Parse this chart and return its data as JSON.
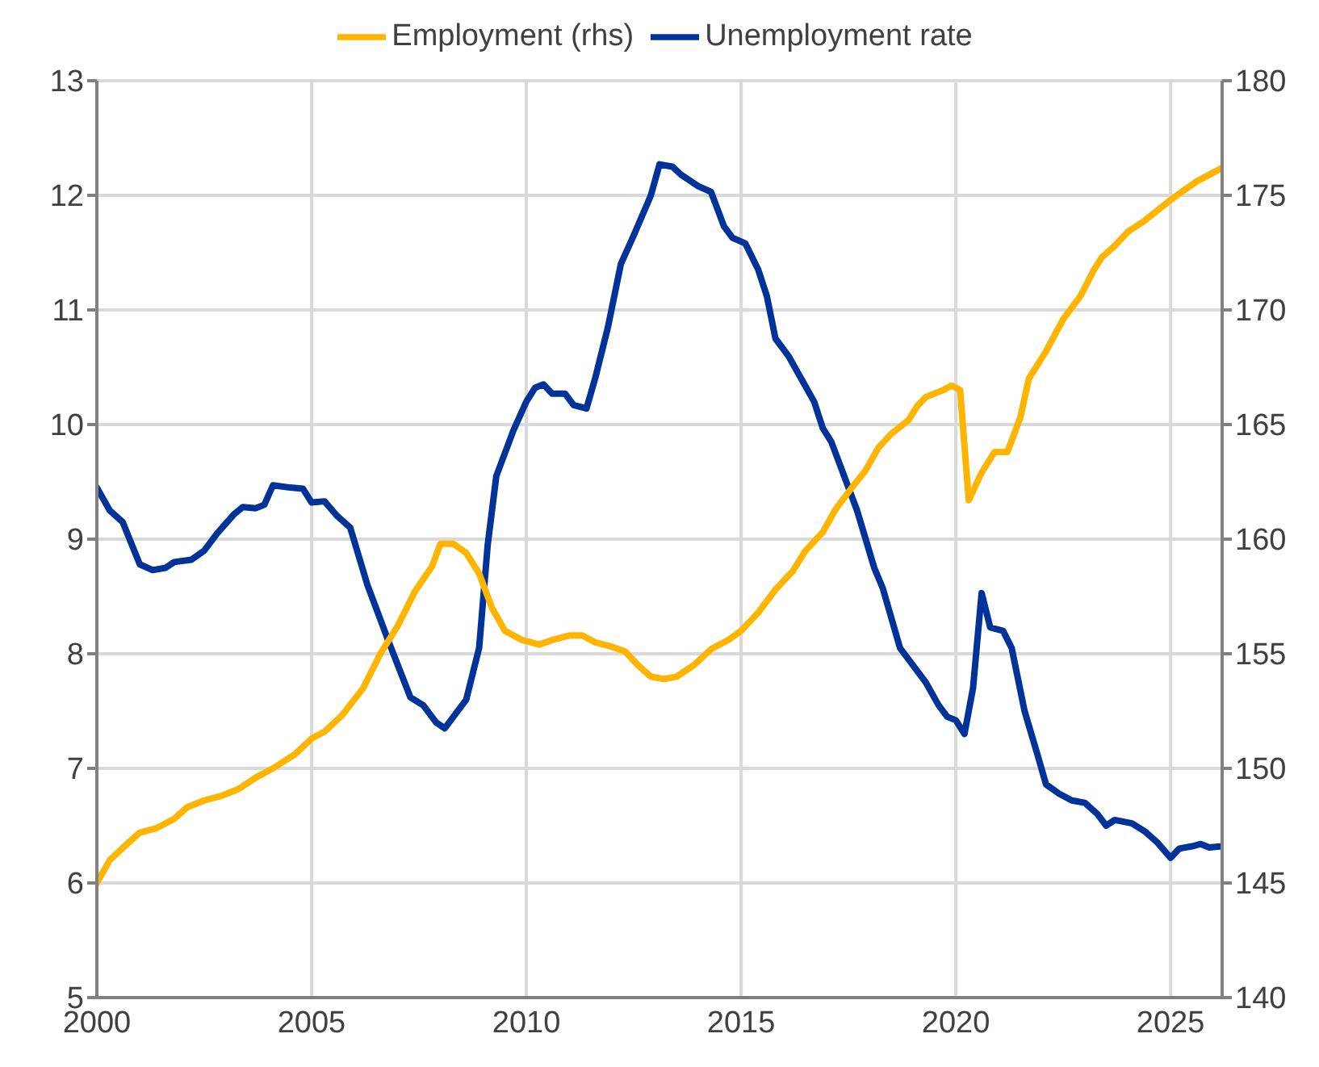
{
  "chart_data": {
    "type": "line",
    "xlim": [
      2000,
      2026.2
    ],
    "xticks": [
      2000,
      2005,
      2010,
      2015,
      2020,
      2025
    ],
    "ylim": [
      5,
      13
    ],
    "yticks": [
      5,
      6,
      7,
      8,
      9,
      10,
      11,
      12,
      13
    ],
    "y2lim": [
      140,
      180
    ],
    "y2ticks": [
      140,
      145,
      150,
      155,
      160,
      165,
      170,
      175,
      180
    ],
    "grid": true,
    "legend": "top",
    "marker": "none",
    "line_style": "solid",
    "series": [
      {
        "name": "Unemployment rate",
        "color": "#003399",
        "x": [
          2000.0,
          2000.3,
          2000.6,
          2001.0,
          2001.3,
          2001.6,
          2001.8,
          2002.2,
          2002.5,
          2002.8,
          2003.2,
          2003.4,
          2003.7,
          2003.9,
          2004.1,
          2004.5,
          2004.8,
          2005.0,
          2005.3,
          2005.6,
          2005.9,
          2006.3,
          2006.8,
          2007.3,
          2007.6,
          2007.9,
          2008.1,
          2008.6,
          2008.9,
          2009.1,
          2009.3,
          2009.7,
          2010.0,
          2010.2,
          2010.4,
          2010.6,
          2010.9,
          2011.1,
          2011.4,
          2011.6,
          2011.9,
          2012.2,
          2012.5,
          2012.9,
          2013.1,
          2013.4,
          2013.6,
          2014.0,
          2014.3,
          2014.6,
          2014.8,
          2015.1,
          2015.4,
          2015.6,
          2015.8,
          2016.1,
          2016.4,
          2016.7,
          2016.9,
          2017.1,
          2017.4,
          2017.7,
          2017.9,
          2018.1,
          2018.3,
          2018.7,
          2019.0,
          2019.3,
          2019.6,
          2019.8,
          2020.0,
          2020.2,
          2020.4,
          2020.6,
          2020.8,
          2021.1,
          2021.3,
          2021.6,
          2021.9,
          2022.1,
          2022.4,
          2022.7,
          2023.0,
          2023.3,
          2023.5,
          2023.7,
          2024.1,
          2024.4,
          2024.7,
          2025.0,
          2025.2,
          2025.5,
          2025.7,
          2025.9,
          2026.2
        ],
        "values": [
          9.45,
          9.25,
          9.15,
          8.78,
          8.73,
          8.75,
          8.8,
          8.82,
          8.9,
          9.05,
          9.22,
          9.28,
          9.27,
          9.3,
          9.47,
          9.45,
          9.44,
          9.32,
          9.33,
          9.2,
          9.1,
          8.6,
          8.1,
          7.62,
          7.55,
          7.4,
          7.35,
          7.6,
          8.05,
          8.95,
          9.55,
          9.95,
          10.2,
          10.32,
          10.35,
          10.27,
          10.27,
          10.17,
          10.14,
          10.4,
          10.85,
          11.4,
          11.65,
          12.0,
          12.27,
          12.25,
          12.18,
          12.08,
          12.03,
          11.73,
          11.63,
          11.58,
          11.35,
          11.12,
          10.75,
          10.6,
          10.4,
          10.2,
          9.97,
          9.85,
          9.55,
          9.25,
          9.0,
          8.75,
          8.57,
          8.05,
          7.9,
          7.75,
          7.55,
          7.45,
          7.42,
          7.3,
          7.7,
          8.53,
          8.23,
          8.2,
          8.05,
          7.5,
          7.12,
          6.86,
          6.78,
          6.72,
          6.7,
          6.6,
          6.5,
          6.55,
          6.52,
          6.45,
          6.35,
          6.22,
          6.3,
          6.32,
          6.34,
          6.31,
          6.32
        ]
      },
      {
        "name": "Employment (rhs)",
        "color": "#ffb400",
        "axis": "y2",
        "x": [
          2000.0,
          2000.3,
          2000.7,
          2001.0,
          2001.4,
          2001.8,
          2002.1,
          2002.5,
          2002.9,
          2003.3,
          2003.7,
          2004.1,
          2004.6,
          2005.0,
          2005.3,
          2005.7,
          2006.2,
          2006.6,
          2007.0,
          2007.4,
          2007.8,
          2008.0,
          2008.3,
          2008.6,
          2008.9,
          2009.2,
          2009.5,
          2009.9,
          2010.3,
          2010.6,
          2011.0,
          2011.3,
          2011.6,
          2012.0,
          2012.3,
          2012.6,
          2012.9,
          2013.2,
          2013.5,
          2013.9,
          2014.3,
          2014.7,
          2015.0,
          2015.4,
          2015.8,
          2016.2,
          2016.5,
          2016.9,
          2017.2,
          2017.6,
          2017.9,
          2018.2,
          2018.5,
          2018.9,
          2019.1,
          2019.3,
          2019.7,
          2019.9,
          2020.1,
          2020.3,
          2020.6,
          2020.9,
          2021.2,
          2021.5,
          2021.7,
          2022.1,
          2022.5,
          2022.9,
          2023.2,
          2023.4,
          2023.7,
          2024.0,
          2024.4,
          2024.8,
          2025.0,
          2025.3,
          2025.6,
          2026.0,
          2026.2
        ],
        "values": [
          145.0,
          146.0,
          146.7,
          147.2,
          147.4,
          147.8,
          148.3,
          148.6,
          148.8,
          149.1,
          149.6,
          150.0,
          150.6,
          151.3,
          151.6,
          152.3,
          153.5,
          155.0,
          156.2,
          157.7,
          158.8,
          159.8,
          159.8,
          159.4,
          158.5,
          157.0,
          156.0,
          155.6,
          155.4,
          155.6,
          155.8,
          155.8,
          155.5,
          155.3,
          155.1,
          154.5,
          154.0,
          153.9,
          154.0,
          154.5,
          155.2,
          155.6,
          156.0,
          156.8,
          157.8,
          158.6,
          159.5,
          160.3,
          161.3,
          162.3,
          163.0,
          164.0,
          164.6,
          165.2,
          165.8,
          166.2,
          166.5,
          166.7,
          166.5,
          161.7,
          162.9,
          163.8,
          163.8,
          165.3,
          167.0,
          168.2,
          169.6,
          170.6,
          171.7,
          172.3,
          172.8,
          173.4,
          173.9,
          174.5,
          174.8,
          175.2,
          175.6,
          176.0,
          176.2
        ]
      }
    ]
  }
}
